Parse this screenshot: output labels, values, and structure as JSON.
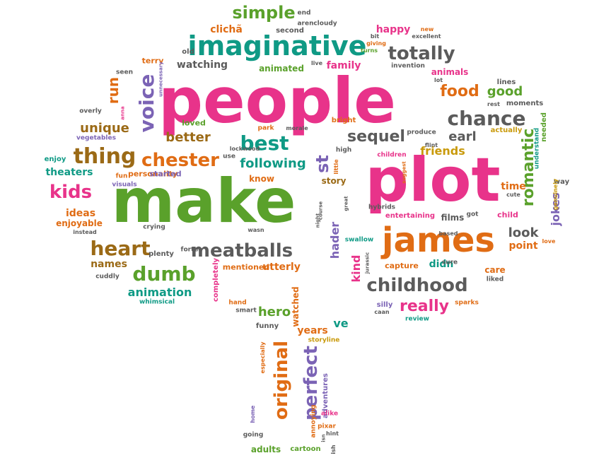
{
  "colors": {
    "pink": "#e8338a",
    "green": "#5aa12b",
    "orange": "#e06c14",
    "purple": "#7b63b5",
    "teal": "#0f9a85",
    "gray": "#5b5b5b",
    "mustard": "#c99a0b",
    "brown": "#9b6a16"
  },
  "words": [
    {
      "text": "people",
      "c": "pink"
    },
    {
      "text": "plot",
      "c": "pink"
    },
    {
      "text": "make",
      "c": "green"
    },
    {
      "text": "james",
      "c": "orange"
    },
    {
      "text": "imaginative",
      "c": "teal"
    },
    {
      "text": "childhood",
      "c": "gray"
    },
    {
      "text": "chance",
      "c": "gray"
    },
    {
      "text": "meatballs",
      "c": "gray"
    },
    {
      "text": "simple",
      "c": "green"
    },
    {
      "text": "totally",
      "c": "gray"
    },
    {
      "text": "voice",
      "c": "purple"
    },
    {
      "text": "best",
      "c": "teal"
    },
    {
      "text": "thing",
      "c": "brown"
    },
    {
      "text": "chester",
      "c": "orange"
    },
    {
      "text": "kids",
      "c": "pink"
    },
    {
      "text": "heart",
      "c": "brown"
    },
    {
      "text": "dumb",
      "c": "green"
    },
    {
      "text": "original",
      "c": "orange"
    },
    {
      "text": "perfect",
      "c": "purple"
    },
    {
      "text": "sequel",
      "c": "gray"
    },
    {
      "text": "romantic",
      "c": "green"
    },
    {
      "text": "really",
      "c": "pink"
    },
    {
      "text": "food",
      "c": "orange"
    },
    {
      "text": "good",
      "c": "green"
    },
    {
      "text": "earl",
      "c": "gray"
    },
    {
      "text": "friends",
      "c": "mustard"
    },
    {
      "text": "unique",
      "c": "brown"
    },
    {
      "text": "run",
      "c": "orange"
    },
    {
      "text": "better",
      "c": "brown"
    },
    {
      "text": "following",
      "c": "teal"
    },
    {
      "text": "animation",
      "c": "teal"
    },
    {
      "text": "hero",
      "c": "green"
    },
    {
      "text": "years",
      "c": "orange"
    },
    {
      "text": "ve",
      "c": "teal"
    },
    {
      "text": "hader",
      "c": "purple"
    },
    {
      "text": "kind",
      "c": "pink"
    },
    {
      "text": "look",
      "c": "gray"
    },
    {
      "text": "point",
      "c": "orange"
    },
    {
      "text": "jokes",
      "c": "purple"
    },
    {
      "text": "time",
      "c": "orange"
    },
    {
      "text": "didn",
      "c": "teal"
    },
    {
      "text": "st",
      "c": "purple"
    },
    {
      "text": "names",
      "c": "brown"
    },
    {
      "text": "utterly",
      "c": "orange"
    },
    {
      "text": "story",
      "c": "brown"
    },
    {
      "text": "theaters",
      "c": "teal"
    },
    {
      "text": "ideas",
      "c": "orange"
    },
    {
      "text": "watched",
      "c": "orange"
    },
    {
      "text": "happy",
      "c": "pink"
    },
    {
      "text": "clichã",
      "c": "orange"
    },
    {
      "text": "family",
      "c": "pink"
    },
    {
      "text": "animals",
      "c": "pink"
    },
    {
      "text": "watching",
      "c": "gray"
    },
    {
      "text": "animated",
      "c": "green"
    },
    {
      "text": "know",
      "c": "orange"
    },
    {
      "text": "films",
      "c": "gray"
    },
    {
      "text": "care",
      "c": "orange"
    },
    {
      "text": "enjoyable",
      "c": "orange"
    },
    {
      "text": "adults",
      "c": "green"
    },
    {
      "text": "adventures",
      "c": "purple"
    },
    {
      "text": "personality",
      "c": "orange"
    },
    {
      "text": "mentioned",
      "c": "orange"
    },
    {
      "text": "capture",
      "c": "orange"
    },
    {
      "text": "started",
      "c": "purple"
    },
    {
      "text": "plenty",
      "c": "gray"
    },
    {
      "text": "cartoon",
      "c": "green"
    },
    {
      "text": "going",
      "c": "gray"
    },
    {
      "text": "completely",
      "c": "pink"
    },
    {
      "text": "lines",
      "c": "gray"
    },
    {
      "text": "moments",
      "c": "gray"
    },
    {
      "text": "child",
      "c": "pink"
    },
    {
      "text": "hybrids",
      "c": "gray"
    },
    {
      "text": "entertaining",
      "c": "pink"
    },
    {
      "text": "bright",
      "c": "orange"
    },
    {
      "text": "high",
      "c": "gray"
    },
    {
      "text": "children",
      "c": "pink"
    },
    {
      "text": "produce",
      "c": "gray"
    },
    {
      "text": "actually",
      "c": "mustard"
    },
    {
      "text": "terry",
      "c": "orange"
    },
    {
      "text": "old",
      "c": "gray"
    },
    {
      "text": "second",
      "c": "gray"
    },
    {
      "text": "end",
      "c": "gray"
    },
    {
      "text": "cloudy",
      "c": "gray"
    },
    {
      "text": "aren",
      "c": "gray"
    },
    {
      "text": "invention",
      "c": "gray"
    },
    {
      "text": "loved",
      "c": "green"
    },
    {
      "text": "enjoy",
      "c": "teal"
    },
    {
      "text": "overly",
      "c": "gray"
    },
    {
      "text": "seen",
      "c": "gray"
    },
    {
      "text": "vegetables",
      "c": "purple"
    },
    {
      "text": "cuddly",
      "c": "gray"
    },
    {
      "text": "whimsical",
      "c": "teal"
    },
    {
      "text": "crying",
      "c": "gray"
    },
    {
      "text": "instead",
      "c": "gray"
    },
    {
      "text": "visuals",
      "c": "purple"
    },
    {
      "text": "fun",
      "c": "orange"
    },
    {
      "text": "silly",
      "c": "purple"
    },
    {
      "text": "funny",
      "c": "gray"
    },
    {
      "text": "smart",
      "c": "gray"
    },
    {
      "text": "hand",
      "c": "orange"
    },
    {
      "text": "swallow",
      "c": "teal"
    },
    {
      "text": "sure",
      "c": "gray"
    },
    {
      "text": "liked",
      "c": "gray"
    },
    {
      "text": "review",
      "c": "teal"
    },
    {
      "text": "sparks",
      "c": "orange"
    },
    {
      "text": "caan",
      "c": "gray"
    },
    {
      "text": "storyline",
      "c": "mustard"
    },
    {
      "text": "alike",
      "c": "pink"
    },
    {
      "text": "pixar",
      "c": "orange"
    },
    {
      "text": "hint",
      "c": "gray"
    },
    {
      "text": "ish",
      "c": "gray"
    },
    {
      "text": "annoying",
      "c": "orange"
    },
    {
      "text": "forte",
      "c": "gray"
    },
    {
      "text": "wasn",
      "c": "gray"
    },
    {
      "text": "park",
      "c": "orange"
    },
    {
      "text": "morale",
      "c": "gray"
    },
    {
      "text": "lockwood",
      "c": "gray"
    },
    {
      "text": "use",
      "c": "gray"
    },
    {
      "text": "little",
      "c": "orange"
    },
    {
      "text": "flint",
      "c": "gray"
    },
    {
      "text": "cute",
      "c": "gray"
    },
    {
      "text": "way",
      "c": "gray"
    },
    {
      "text": "love",
      "c": "orange"
    },
    {
      "text": "rest",
      "c": "gray"
    },
    {
      "text": "based",
      "c": "gray"
    },
    {
      "text": "got",
      "c": "gray"
    },
    {
      "text": "excellent",
      "c": "gray"
    },
    {
      "text": "new",
      "c": "orange"
    },
    {
      "text": "bit",
      "c": "gray"
    },
    {
      "text": "giving",
      "c": "orange"
    },
    {
      "text": "turns",
      "c": "green"
    },
    {
      "text": "live",
      "c": "gray"
    },
    {
      "text": "lot",
      "c": "gray"
    },
    {
      "text": "especially",
      "c": "orange"
    },
    {
      "text": "home",
      "c": "purple"
    },
    {
      "text": "night",
      "c": "gray"
    },
    {
      "text": "course",
      "c": "gray"
    },
    {
      "text": "great",
      "c": "gray"
    },
    {
      "text": "suggest",
      "c": "orange"
    },
    {
      "text": "jurassic",
      "c": "gray"
    },
    {
      "text": "understand",
      "c": "teal"
    },
    {
      "text": "needed",
      "c": "green"
    },
    {
      "text": "genuinely",
      "c": "mustard"
    },
    {
      "text": "unnecessary",
      "c": "purple"
    },
    {
      "text": "anna",
      "c": "pink"
    },
    {
      "text": "isn",
      "c": "gray"
    }
  ]
}
